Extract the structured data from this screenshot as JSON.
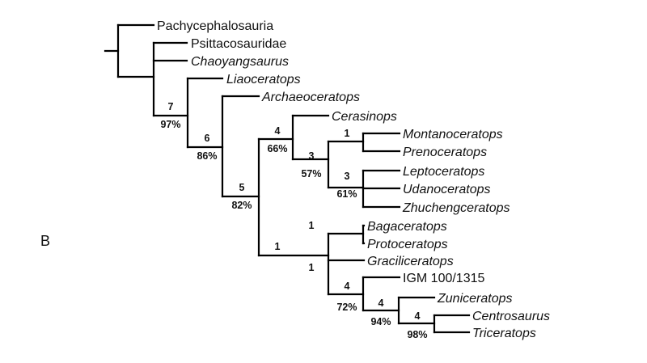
{
  "panel_label": "B",
  "taxa": {
    "pachycephalosauria": "Pachycephalosauria",
    "psittacosauridae": "Psittacosauridae",
    "chaoyangsaurus": "Chaoyangsaurus",
    "liaoceratops": "Liaoceratops",
    "archaeoceratops": "Archaeoceratops",
    "cerasinops": "Cerasinops",
    "montanoceratops": "Montanoceratops",
    "prenoceratops": "Prenoceratops",
    "leptoceratops": "Leptoceratops",
    "udanoceratops": "Udanoceratops",
    "zhuchengceratops": "Zhuchengceratops",
    "bagaceratops": "Bagaceratops",
    "protoceratops": "Protoceratops",
    "graciliceratops": "Graciliceratops",
    "igm": "IGM 100/1315",
    "zuniceratops": "Zuniceratops",
    "centrosaurus": "Centrosaurus",
    "triceratops": "Triceratops"
  },
  "support": {
    "n7_bremer": "7",
    "n7_boot": "97%",
    "n6_bremer": "6",
    "n6_boot": "86%",
    "n5_bremer": "5",
    "n5_boot": "82%",
    "n4a_bremer": "4",
    "n4a_boot": "66%",
    "n3a_bremer": "3",
    "n3a_boot": "57%",
    "n1a_bremer": "1",
    "n3b_bremer": "3",
    "n3b_boot": "61%",
    "n1b_bremer": "1",
    "n1c_bremer": "1",
    "n1d_bremer": "1",
    "n4b_bremer": "4",
    "n4b_boot": "72%",
    "n4c_bremer": "4",
    "n4c_boot": "94%",
    "n4d_bremer": "4",
    "n4d_boot": "98%"
  }
}
